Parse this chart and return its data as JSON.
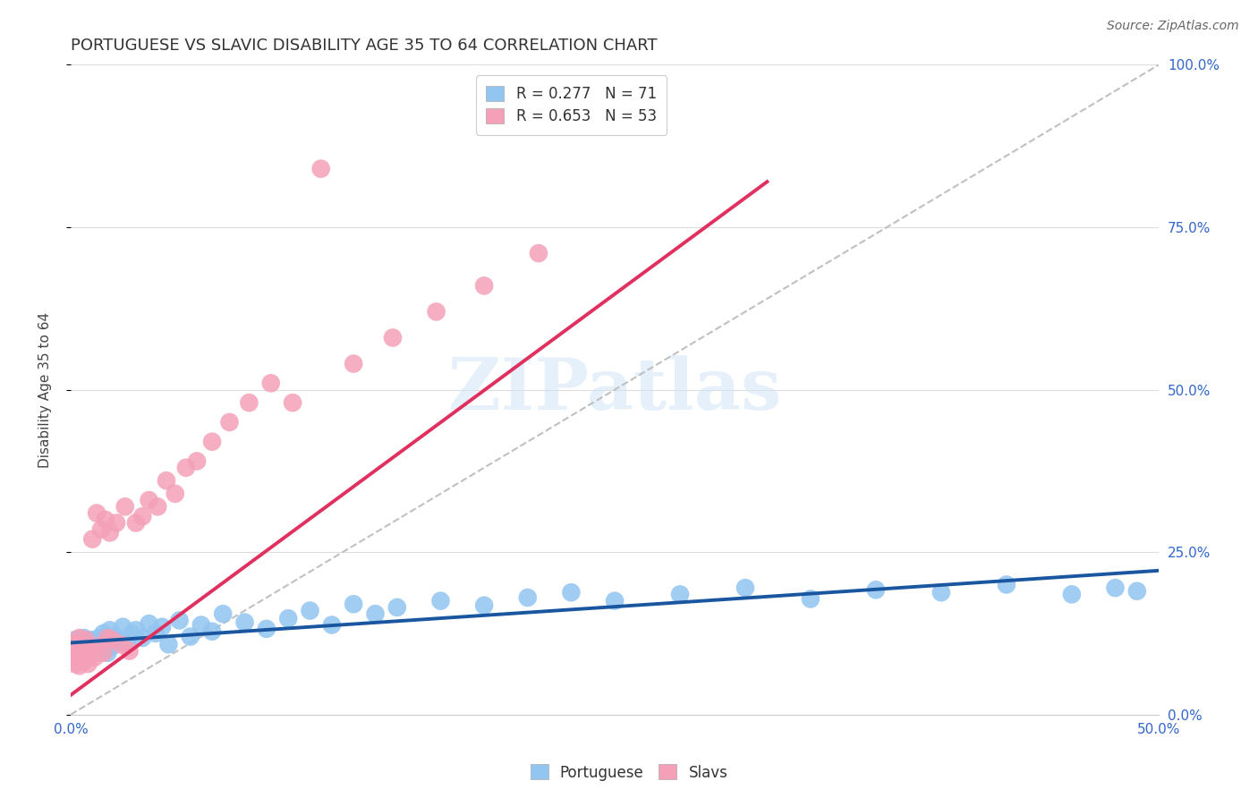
{
  "title": "PORTUGUESE VS SLAVIC DISABILITY AGE 35 TO 64 CORRELATION CHART",
  "source": "Source: ZipAtlas.com",
  "ylabel": "Disability Age 35 to 64",
  "color_portuguese": "#92C5F0",
  "color_slavs": "#F4A0B8",
  "line_color_portuguese": "#1A56A0",
  "line_color_slavs": "#E03060",
  "legend_line1": "R = 0.277   N = 71",
  "legend_line2": "R = 0.653   N = 53",
  "legend_label1": "Portuguese",
  "legend_label2": "Slavs",
  "watermark": "ZIPatlas",
  "background_color": "#ffffff",
  "grid_color": "#dddddd",
  "title_fontsize": 13,
  "axis_label_fontsize": 11,
  "tick_fontsize": 11,
  "legend_fontsize": 12,
  "xlim": [
    0.0,
    0.5
  ],
  "ylim": [
    0.0,
    1.0
  ],
  "portuguese_x": [
    0.001,
    0.001,
    0.002,
    0.002,
    0.002,
    0.003,
    0.003,
    0.003,
    0.004,
    0.004,
    0.004,
    0.005,
    0.005,
    0.005,
    0.006,
    0.006,
    0.006,
    0.007,
    0.007,
    0.008,
    0.008,
    0.009,
    0.009,
    0.01,
    0.011,
    0.012,
    0.013,
    0.014,
    0.015,
    0.016,
    0.017,
    0.018,
    0.019,
    0.02,
    0.022,
    0.024,
    0.026,
    0.028,
    0.03,
    0.033,
    0.036,
    0.039,
    0.042,
    0.045,
    0.05,
    0.055,
    0.06,
    0.065,
    0.07,
    0.08,
    0.09,
    0.1,
    0.11,
    0.12,
    0.13,
    0.14,
    0.15,
    0.17,
    0.19,
    0.21,
    0.23,
    0.25,
    0.28,
    0.31,
    0.34,
    0.37,
    0.4,
    0.43,
    0.46,
    0.48,
    0.49
  ],
  "portuguese_y": [
    0.095,
    0.105,
    0.09,
    0.1,
    0.115,
    0.088,
    0.102,
    0.11,
    0.093,
    0.107,
    0.098,
    0.085,
    0.112,
    0.103,
    0.091,
    0.108,
    0.118,
    0.094,
    0.106,
    0.089,
    0.113,
    0.097,
    0.115,
    0.1,
    0.108,
    0.095,
    0.118,
    0.103,
    0.125,
    0.11,
    0.095,
    0.13,
    0.105,
    0.12,
    0.115,
    0.135,
    0.11,
    0.125,
    0.13,
    0.118,
    0.14,
    0.125,
    0.135,
    0.108,
    0.145,
    0.12,
    0.138,
    0.128,
    0.155,
    0.142,
    0.132,
    0.148,
    0.16,
    0.138,
    0.17,
    0.155,
    0.165,
    0.175,
    0.168,
    0.18,
    0.188,
    0.175,
    0.185,
    0.195,
    0.178,
    0.192,
    0.188,
    0.2,
    0.185,
    0.195,
    0.19
  ],
  "slavs_x": [
    0.001,
    0.001,
    0.002,
    0.002,
    0.002,
    0.003,
    0.003,
    0.003,
    0.004,
    0.004,
    0.004,
    0.005,
    0.005,
    0.006,
    0.006,
    0.007,
    0.007,
    0.008,
    0.008,
    0.009,
    0.01,
    0.011,
    0.012,
    0.013,
    0.014,
    0.015,
    0.016,
    0.017,
    0.018,
    0.019,
    0.021,
    0.023,
    0.025,
    0.027,
    0.03,
    0.033,
    0.036,
    0.04,
    0.044,
    0.048,
    0.053,
    0.058,
    0.065,
    0.073,
    0.082,
    0.092,
    0.102,
    0.115,
    0.13,
    0.148,
    0.168,
    0.19,
    0.215
  ],
  "slavs_y": [
    0.098,
    0.082,
    0.105,
    0.092,
    0.078,
    0.11,
    0.095,
    0.088,
    0.102,
    0.075,
    0.118,
    0.09,
    0.105,
    0.082,
    0.098,
    0.115,
    0.088,
    0.103,
    0.078,
    0.095,
    0.27,
    0.088,
    0.31,
    0.105,
    0.285,
    0.095,
    0.3,
    0.118,
    0.28,
    0.115,
    0.295,
    0.108,
    0.32,
    0.098,
    0.295,
    0.305,
    0.33,
    0.32,
    0.36,
    0.34,
    0.38,
    0.39,
    0.42,
    0.45,
    0.48,
    0.51,
    0.48,
    0.84,
    0.54,
    0.58,
    0.62,
    0.66,
    0.71
  ]
}
